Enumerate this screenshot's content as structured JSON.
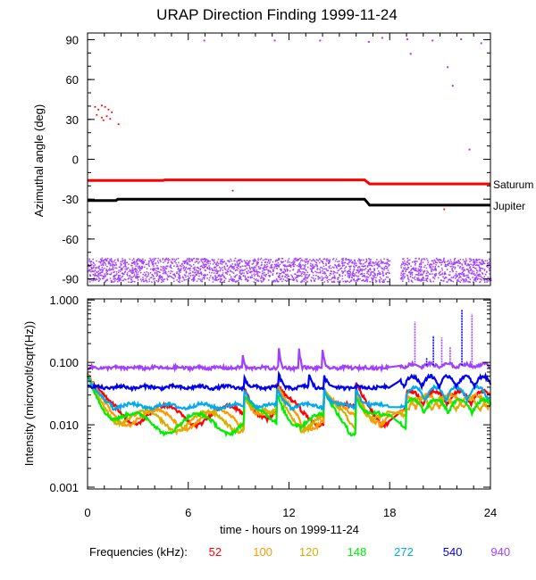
{
  "chart_data": [
    {
      "type": "scatter",
      "title": "URAP Direction Finding  1999-11-24",
      "xlabel": "",
      "ylabel": "Azimuthal angle (deg)",
      "xlim": [
        0,
        24
      ],
      "ylim": [
        -95,
        95
      ],
      "yticks": [
        90,
        60,
        30,
        0,
        -30,
        -60,
        -90
      ],
      "ytick_labels": [
        "90",
        "60",
        "30",
        "0",
        "-30",
        "-60",
        "-90"
      ],
      "series": [
        {
          "name": "Saturum",
          "color": "#ff0000",
          "points": [
            [
              0,
              -16
            ],
            [
              4.5,
              -16
            ],
            [
              4.6,
              -15.5
            ],
            [
              16.5,
              -15.5
            ],
            [
              16.8,
              -18.5
            ],
            [
              24,
              -18.5
            ]
          ]
        },
        {
          "name": "Jupiter",
          "color": "#000000",
          "points": [
            [
              0,
              -31
            ],
            [
              1.7,
              -31
            ],
            [
              1.8,
              -30
            ],
            [
              16.5,
              -30
            ],
            [
              16.8,
              -34.5
            ],
            [
              24,
              -34.5
            ]
          ]
        },
        {
          "name": "940 kHz scatter",
          "color": "#a040ff",
          "y_band": [
            -92,
            -74
          ],
          "gap_x": [
            18.0,
            18.6
          ]
        }
      ],
      "annotations": [
        "Saturum",
        "Jupiter"
      ]
    },
    {
      "type": "line",
      "title": "",
      "xlabel": "time - hours on 1999-11-24",
      "ylabel": "Intensity (microvolt/sqrt(Hz))",
      "xlim": [
        0,
        24
      ],
      "ylim": [
        0.001,
        1.0
      ],
      "yscale": "log",
      "xticks": [
        0,
        6,
        12,
        18,
        24
      ],
      "xtick_labels": [
        "0",
        "6",
        "12",
        "18",
        "24"
      ],
      "yticks": [
        1.0,
        0.1,
        0.01,
        0.001
      ],
      "ytick_labels": [
        "1.000",
        "0.100",
        "0.010",
        "0.001"
      ],
      "series": [
        {
          "name": "52",
          "color": "#ff0000",
          "baseline": 0.015
        },
        {
          "name": "100",
          "color": "#ff9900",
          "baseline": 0.013
        },
        {
          "name": "120",
          "color": "#d4b000",
          "baseline": 0.012
        },
        {
          "name": "148",
          "color": "#00ee00",
          "baseline": 0.011
        },
        {
          "name": "272",
          "color": "#00aaee",
          "baseline": 0.02
        },
        {
          "name": "540",
          "color": "#0000ee",
          "baseline": 0.04
        },
        {
          "name": "940",
          "color": "#a040ff",
          "baseline": 0.082
        }
      ]
    }
  ],
  "legend": {
    "label": "Frequencies (kHz):",
    "items": [
      {
        "label": "52",
        "color": "#ff0000"
      },
      {
        "label": "100",
        "color": "#ff9900"
      },
      {
        "label": "120",
        "color": "#d4b000"
      },
      {
        "label": "148",
        "color": "#00ee00"
      },
      {
        "label": "272",
        "color": "#00aaee"
      },
      {
        "label": "540",
        "color": "#0000ee"
      },
      {
        "label": "940",
        "color": "#a040ff"
      }
    ]
  }
}
